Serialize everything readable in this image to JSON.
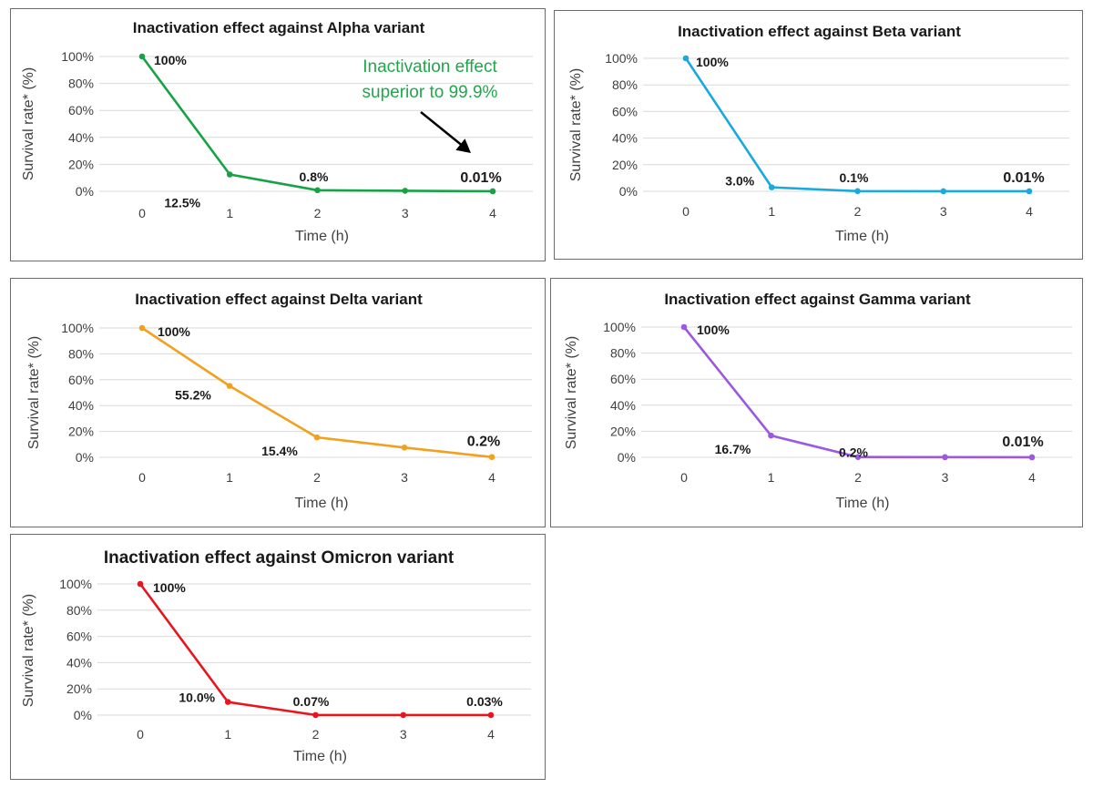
{
  "chart_data": [
    {
      "type": "line",
      "title": "Inactivation effect against Alpha variant",
      "xlabel": "Time (h)",
      "ylabel": "Survival rate* (%)",
      "x": [
        0,
        1,
        2,
        3,
        4
      ],
      "ylim": [
        0,
        100
      ],
      "yticks": [
        "0%",
        "20%",
        "40%",
        "60%",
        "80%",
        "100%"
      ],
      "grid": true,
      "series": [
        {
          "color": "#17a345",
          "values": [
            100,
            12.5,
            0.8,
            0.4,
            0.01
          ]
        }
      ],
      "data_labels": [
        {
          "point": 0,
          "text": "100%"
        },
        {
          "point": 1,
          "text": "12.5%"
        },
        {
          "point": 2,
          "text": "0.8%"
        },
        {
          "point": 4,
          "text": "0.01%"
        }
      ],
      "annotation": {
        "lines": [
          "Inactivation effect",
          "superior to 99.9%"
        ],
        "color": "#1ea84a"
      }
    },
    {
      "type": "line",
      "title": "Inactivation effect against Beta variant",
      "xlabel": "Time (h)",
      "ylabel": "Survival rate* (%)",
      "x": [
        0,
        1,
        2,
        3,
        4
      ],
      "ylim": [
        0,
        100
      ],
      "yticks": [
        "0%",
        "20%",
        "40%",
        "60%",
        "80%",
        "100%"
      ],
      "grid": true,
      "series": [
        {
          "color": "#1aa9df",
          "values": [
            100,
            3.0,
            0.1,
            0.05,
            0.01
          ]
        }
      ],
      "data_labels": [
        {
          "point": 0,
          "text": "100%"
        },
        {
          "point": 1,
          "text": "3.0%"
        },
        {
          "point": 2,
          "text": "0.1%"
        },
        {
          "point": 4,
          "text": "0.01%"
        }
      ]
    },
    {
      "type": "line",
      "title": "Inactivation effect against Delta variant",
      "xlabel": "Time (h)",
      "ylabel": "Survival rate* (%)",
      "x": [
        0,
        1,
        2,
        3,
        4
      ],
      "ylim": [
        0,
        100
      ],
      "yticks": [
        "0%",
        "20%",
        "40%",
        "60%",
        "80%",
        "100%"
      ],
      "grid": true,
      "series": [
        {
          "color": "#f2a01e",
          "values": [
            100,
            55.2,
            15.4,
            7.5,
            0.2
          ]
        }
      ],
      "data_labels": [
        {
          "point": 0,
          "text": "100%"
        },
        {
          "point": 1,
          "text": "55.2%"
        },
        {
          "point": 2,
          "text": "15.4%"
        },
        {
          "point": 4,
          "text": "0.2%"
        }
      ]
    },
    {
      "type": "line",
      "title": "Inactivation effect against Gamma variant",
      "xlabel": "Time (h)",
      "ylabel": "Survival rate* (%)",
      "x": [
        0,
        1,
        2,
        3,
        4
      ],
      "ylim": [
        0,
        100
      ],
      "yticks": [
        "0%",
        "20%",
        "40%",
        "60%",
        "80%",
        "100%"
      ],
      "grid": true,
      "series": [
        {
          "color": "#9a59e0",
          "values": [
            100,
            16.7,
            0.2,
            0.1,
            0.01
          ]
        }
      ],
      "data_labels": [
        {
          "point": 0,
          "text": "100%"
        },
        {
          "point": 1,
          "text": "16.7%"
        },
        {
          "point": 2,
          "text": "0.2%"
        },
        {
          "point": 4,
          "text": "0.01%"
        }
      ]
    },
    {
      "type": "line",
      "title": "Inactivation effect against Omicron variant",
      "xlabel": "Time (h)",
      "ylabel": "Survival rate* (%)",
      "x": [
        0,
        1,
        2,
        3,
        4
      ],
      "ylim": [
        0,
        100
      ],
      "yticks": [
        "0%",
        "20%",
        "40%",
        "60%",
        "80%",
        "100%"
      ],
      "grid": true,
      "series": [
        {
          "color": "#e8161c",
          "values": [
            100,
            10.0,
            0.07,
            0.05,
            0.03
          ]
        }
      ],
      "data_labels": [
        {
          "point": 0,
          "text": "100%"
        },
        {
          "point": 1,
          "text": "10.0%"
        },
        {
          "point": 2,
          "text": "0.07%"
        },
        {
          "point": 4,
          "text": "0.03%"
        }
      ]
    }
  ]
}
